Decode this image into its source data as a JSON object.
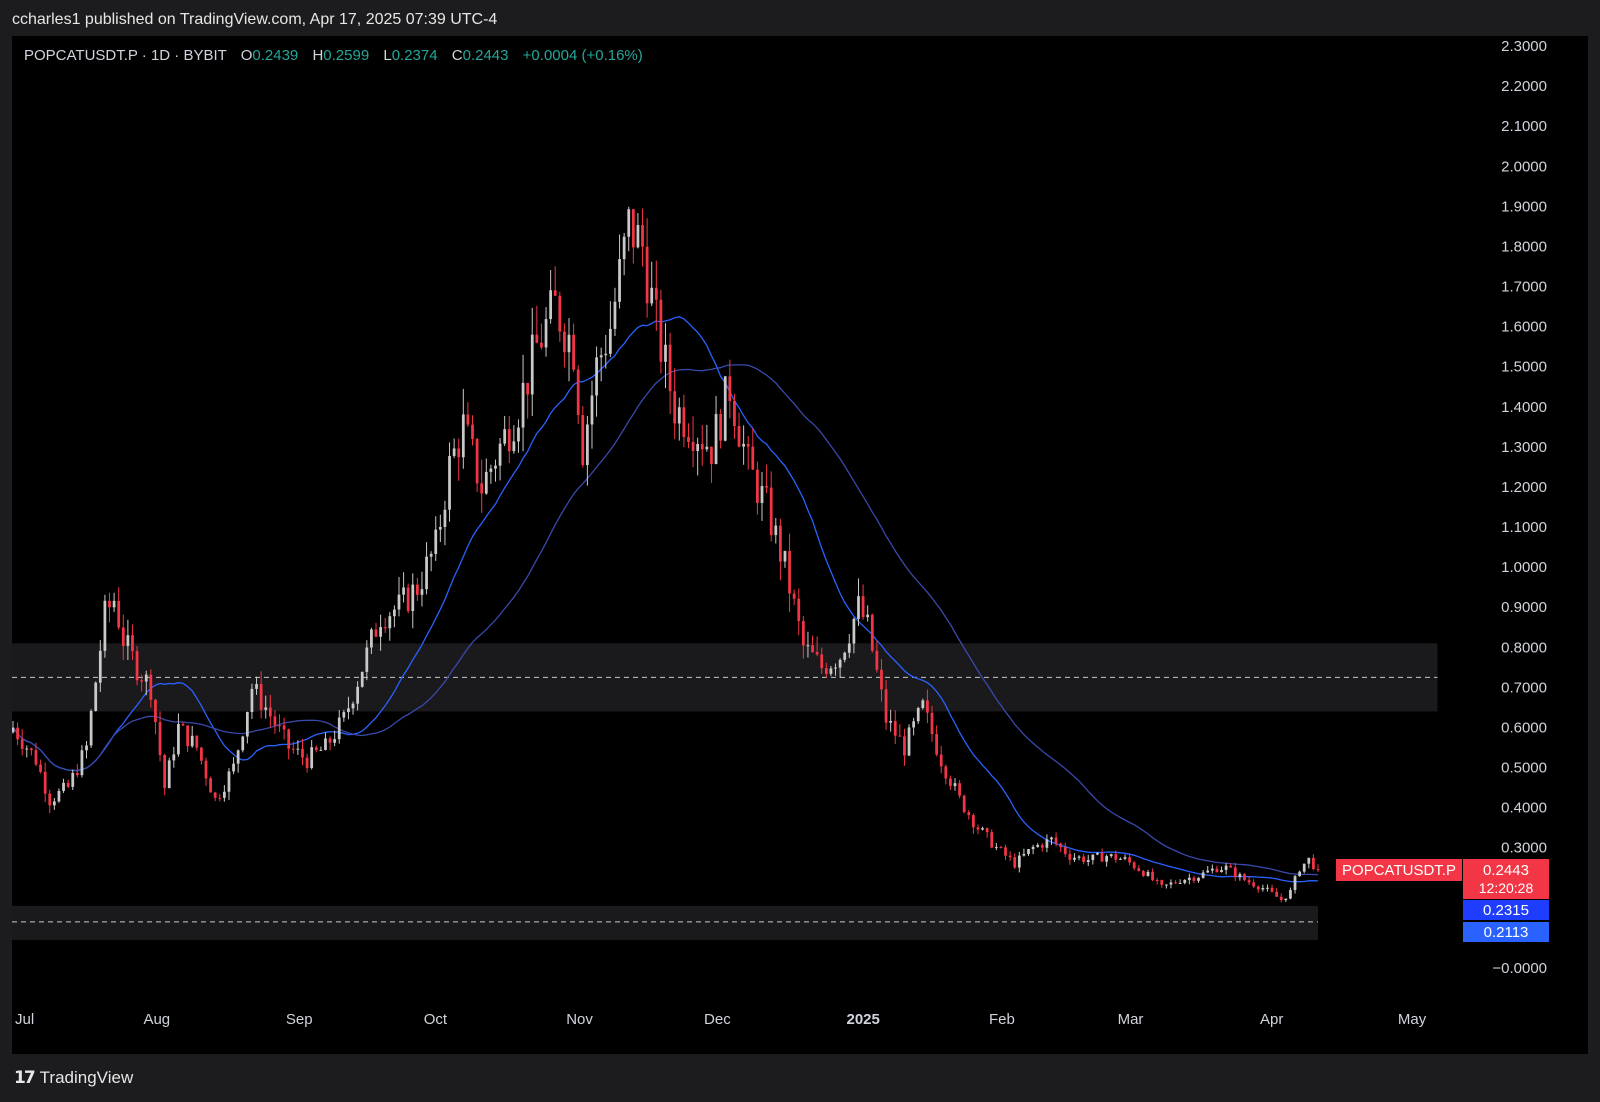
{
  "publisher_line": "ccharles1 published on TradingView.com, Apr 17, 2025 07:39 UTC-4",
  "brand": {
    "logo_icon": "tradingview-logo-icon",
    "name": "TradingView"
  },
  "colors": {
    "up": "#c9c9c9",
    "down": "#f23645",
    "ma_fast": "#2962ff",
    "ma_slow": "#3949ab",
    "zone": "#1a1a1c",
    "price_tag": "#f23645",
    "ma_tag_1": "#1f3dff",
    "ma_tag_2": "#2962ff"
  },
  "legend": {
    "symbol": "POPCATUSDT.P · 1D · BYBIT",
    "o_label": "O",
    "o_value": "0.2439",
    "h_label": "H",
    "h_value": "0.2599",
    "l_label": "L",
    "l_value": "0.2374",
    "c_label": "C",
    "c_value": "0.2443",
    "change": "+0.0004 (+0.16%)"
  },
  "price_tag": {
    "symbol": "POPCATUSDT.P",
    "price": "0.2443",
    "countdown": "12:20:28"
  },
  "ma_tags": [
    "0.2315",
    "0.2113"
  ],
  "chart_data": {
    "type": "candlestick",
    "symbol": "POPCATUSDT.P",
    "interval": "1D",
    "exchange": "BYBIT",
    "ylim": [
      -0.05,
      2.35
    ],
    "y_ticks": [
      "2.3000",
      "2.2000",
      "2.1000",
      "2.0000",
      "1.9000",
      "1.8000",
      "1.7000",
      "1.6000",
      "1.5000",
      "1.4000",
      "1.3000",
      "1.2000",
      "1.1000",
      "1.0000",
      "0.9000",
      "0.8000",
      "0.7000",
      "0.6000",
      "0.5000",
      "0.4000",
      "0.3000",
      "0.2000",
      "0.1000",
      "−0.0000"
    ],
    "x_labels": [
      {
        "label": "Jul",
        "day": 0,
        "bold": false
      },
      {
        "label": "Aug",
        "day": 31,
        "bold": false
      },
      {
        "label": "Sep",
        "day": 62,
        "bold": false
      },
      {
        "label": "Oct",
        "day": 92,
        "bold": false
      },
      {
        "label": "Nov",
        "day": 123,
        "bold": false
      },
      {
        "label": "Dec",
        "day": 153,
        "bold": false
      },
      {
        "label": "2025",
        "day": 184,
        "bold": true
      },
      {
        "label": "Feb",
        "day": 215,
        "bold": false
      },
      {
        "label": "Mar",
        "day": 243,
        "bold": false
      },
      {
        "label": "Apr",
        "day": 274,
        "bold": false
      },
      {
        "label": "May",
        "day": 304,
        "bold": false
      }
    ],
    "close_anchors": [
      [
        0,
        0.6
      ],
      [
        5,
        0.52
      ],
      [
        8,
        0.42
      ],
      [
        12,
        0.45
      ],
      [
        16,
        0.55
      ],
      [
        20,
        0.88
      ],
      [
        22,
        0.92
      ],
      [
        24,
        0.82
      ],
      [
        27,
        0.75
      ],
      [
        30,
        0.7
      ],
      [
        33,
        0.45
      ],
      [
        36,
        0.6
      ],
      [
        40,
        0.55
      ],
      [
        44,
        0.42
      ],
      [
        48,
        0.5
      ],
      [
        52,
        0.7
      ],
      [
        55,
        0.65
      ],
      [
        60,
        0.55
      ],
      [
        64,
        0.52
      ],
      [
        68,
        0.55
      ],
      [
        72,
        0.62
      ],
      [
        76,
        0.75
      ],
      [
        80,
        0.88
      ],
      [
        84,
        0.9
      ],
      [
        88,
        0.95
      ],
      [
        92,
        1.05
      ],
      [
        95,
        1.25
      ],
      [
        98,
        1.35
      ],
      [
        102,
        1.2
      ],
      [
        106,
        1.3
      ],
      [
        110,
        1.4
      ],
      [
        114,
        1.55
      ],
      [
        118,
        1.65
      ],
      [
        122,
        1.55
      ],
      [
        124,
        1.3
      ],
      [
        127,
        1.5
      ],
      [
        130,
        1.6
      ],
      [
        134,
        1.85
      ],
      [
        137,
        1.8
      ],
      [
        140,
        1.6
      ],
      [
        144,
        1.4
      ],
      [
        148,
        1.35
      ],
      [
        152,
        1.3
      ],
      [
        156,
        1.45
      ],
      [
        160,
        1.25
      ],
      [
        164,
        1.15
      ],
      [
        168,
        1.0
      ],
      [
        172,
        0.8
      ],
      [
        176,
        0.75
      ],
      [
        180,
        0.78
      ],
      [
        184,
        0.9
      ],
      [
        186,
        0.85
      ],
      [
        190,
        0.62
      ],
      [
        194,
        0.55
      ],
      [
        198,
        0.65
      ],
      [
        202,
        0.52
      ],
      [
        206,
        0.42
      ],
      [
        210,
        0.35
      ],
      [
        214,
        0.3
      ],
      [
        218,
        0.26
      ],
      [
        222,
        0.3
      ],
      [
        226,
        0.32
      ],
      [
        230,
        0.28
      ],
      [
        234,
        0.27
      ],
      [
        238,
        0.28
      ],
      [
        242,
        0.27
      ],
      [
        246,
        0.24
      ],
      [
        250,
        0.2
      ],
      [
        254,
        0.22
      ],
      [
        258,
        0.23
      ],
      [
        262,
        0.25
      ],
      [
        264,
        0.25
      ],
      [
        268,
        0.22
      ],
      [
        272,
        0.2
      ],
      [
        276,
        0.17
      ],
      [
        278,
        0.19
      ],
      [
        280,
        0.25
      ],
      [
        282,
        0.27
      ],
      [
        284,
        0.2443
      ]
    ],
    "ma_fast": {
      "period": 20,
      "last": 0.2113
    },
    "ma_slow": {
      "period": 50,
      "last": 0.2315
    },
    "zones": [
      {
        "top": 0.81,
        "bottom": 0.64,
        "x_end_day": 310,
        "dashed_level": 0.725
      },
      {
        "top": 0.155,
        "bottom": 0.07,
        "x_end_day": 284,
        "dashed_level": 0.115
      }
    ],
    "grid": false,
    "legend_position": "top-left"
  }
}
